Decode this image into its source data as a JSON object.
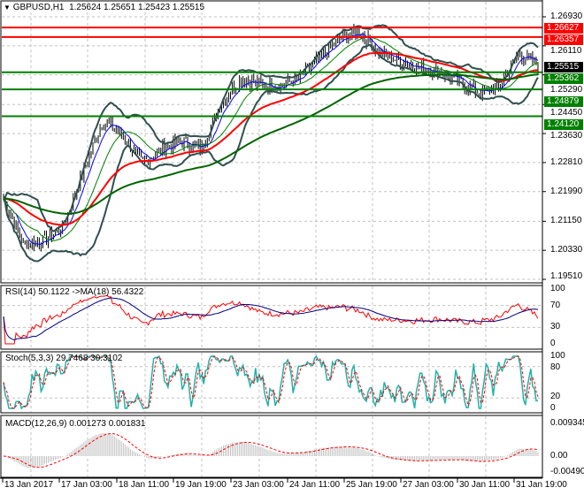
{
  "header": {
    "symbol_label": "GBPUSD,H1",
    "open": "1.25624",
    "high": "1.25651",
    "low": "1.25423",
    "close": "1.25515"
  },
  "price_axis": [
    "1.26930",
    "1.26110",
    "1.25290",
    "1.24450",
    "1.23630",
    "1.22810",
    "1.21990",
    "1.21150",
    "1.20330",
    "1.19510"
  ],
  "levels": [
    {
      "value": "1.26627",
      "color": "#ff0000"
    },
    {
      "value": "1.26357",
      "color": "#ff0000"
    },
    {
      "value": "1.25362",
      "color": "#008000"
    },
    {
      "value": "1.24879",
      "color": "#008000"
    },
    {
      "value": "1.24120",
      "color": "#008000"
    }
  ],
  "current_price": {
    "value": "1.25515",
    "color": "#000000"
  },
  "rsi": {
    "label": "RSI(14) 50.1122  ->MA(18) 56.4322",
    "axis": [
      "100",
      "70",
      "30",
      "0"
    ]
  },
  "stoch": {
    "label": "Stoch(5,3,3) 29.7468 30.3102",
    "axis": [
      "100",
      "80",
      "20",
      "0"
    ]
  },
  "macd": {
    "label": "MACD(12,26,9) 0.001273 0.001831",
    "axis": [
      "0.009345",
      "0.00",
      "-0.004907"
    ]
  },
  "time_axis": [
    "13 Jan 2017",
    "17 Jan 03:00",
    "18 Jan 11:00",
    "19 Jan 19:00",
    "23 Jan 03:00",
    "24 Jan 11:00",
    "25 Jan 19:00",
    "27 Jan 03:00",
    "30 Jan 11:00",
    "31 Jan 19:00"
  ],
  "chart_data": {
    "type": "line",
    "title": "GBPUSD,H1",
    "ylim": [
      1.1951,
      1.2693
    ],
    "price_waypoints": [
      1.218,
      1.205,
      1.206,
      1.21,
      1.225,
      1.24,
      1.236,
      1.228,
      1.232,
      1.234,
      1.232,
      1.245,
      1.252,
      1.25,
      1.25,
      1.252,
      1.258,
      1.263,
      1.265,
      1.259,
      1.257,
      1.255,
      1.254,
      1.251,
      1.248,
      1.249,
      1.259,
      1.2555
    ],
    "series_colors": {
      "bars": "#000000",
      "ma_fast": "#0000ff",
      "ma_mid": "#008000",
      "ma_slow": "#ff0000",
      "ma_long": "#006400",
      "bands": "#2f4f4f",
      "rsi": "#ff0000",
      "rsi_ma": "#000080",
      "stoch_main": "#20b2aa",
      "stoch_signal": "#ff0000",
      "macd_hist": "#c0c0c0",
      "macd_signal": "#ff0000"
    }
  }
}
